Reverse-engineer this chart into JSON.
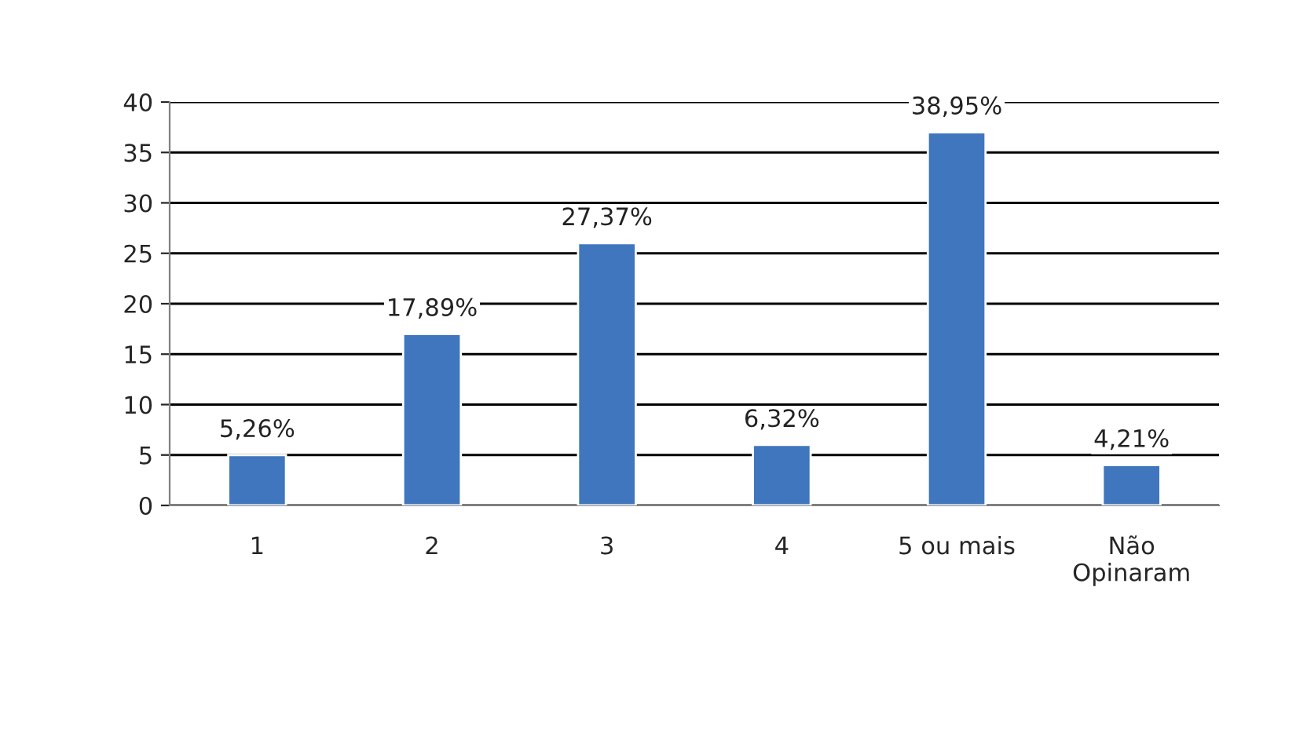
{
  "chart_data": {
    "type": "bar",
    "categories": [
      "1",
      "2",
      "3",
      "4",
      "5 ou mais",
      "Não\nOpinaram"
    ],
    "series": [
      {
        "color": "#3f76bd",
        "values": [
          5,
          17,
          26,
          6,
          37,
          4
        ]
      }
    ],
    "value_labels": [
      "5,26%",
      "17,89%",
      "27,37%",
      "6,32%",
      "38,95%",
      "4,21%"
    ],
    "ylim": [
      0,
      40
    ],
    "yticks": [
      0,
      5,
      10,
      15,
      20,
      25,
      30,
      35,
      40
    ],
    "grid": "y",
    "legend": false
  }
}
